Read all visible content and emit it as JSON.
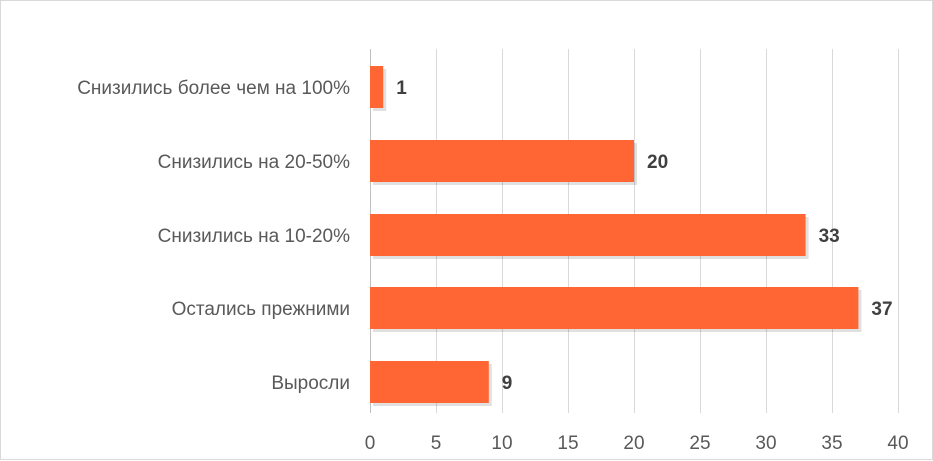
{
  "chart_data": {
    "type": "bar",
    "orientation": "horizontal",
    "categories": [
      "Снизились более чем на 100%",
      "Снизились на 20-50%",
      "Снизились на 10-20%",
      "Остались прежними",
      "Выросли"
    ],
    "values": [
      1,
      20,
      33,
      37,
      9
    ],
    "xlim": [
      0,
      40
    ],
    "xticks": [
      0,
      5,
      10,
      15,
      20,
      25,
      30,
      35,
      40
    ],
    "grid": true,
    "legend": "none",
    "bar_color": "#ff6633"
  }
}
